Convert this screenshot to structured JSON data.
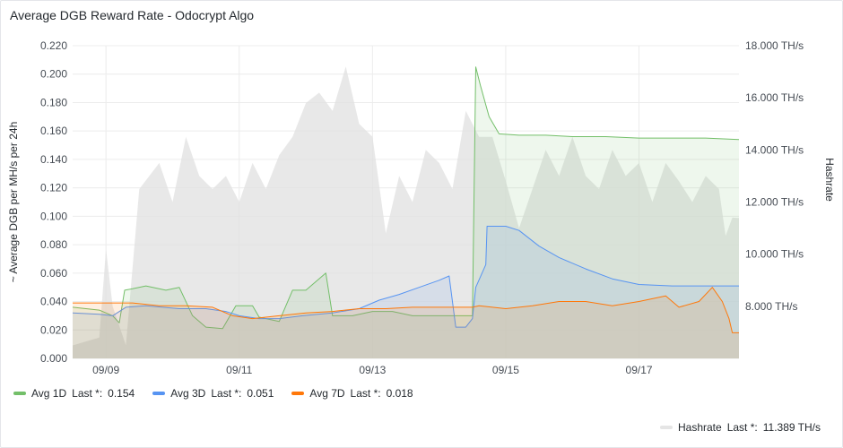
{
  "panel": {
    "title": "Average DGB Reward Rate - Odocrypt Algo"
  },
  "chart_data": {
    "type": "line",
    "title": "Average DGB Reward Rate - Odocrypt Algo",
    "ylabel_left": "~ Average DGB per MH/s per 24h",
    "ylabel_right": "Hashrate",
    "y_left_ticks": [
      "0.220",
      "0.200",
      "0.180",
      "0.160",
      "0.140",
      "0.120",
      "0.100",
      "0.080",
      "0.060",
      "0.040",
      "0.020",
      "0.000"
    ],
    "y_right_ticks": [
      "18.000 TH/s",
      "16.000 TH/s",
      "14.000 TH/s",
      "12.000 TH/s",
      "10.000 TH/s",
      "8.000 TH/s"
    ],
    "x_ticks": [
      "09/09",
      "09/11",
      "09/13",
      "09/15",
      "09/17"
    ],
    "ylim_left": [
      0,
      0.22
    ],
    "ylim_right_ths": [
      6.0,
      18.0
    ],
    "x_range_days": [
      8.5,
      18.5
    ],
    "grid": true,
    "legend_position": "bottom",
    "series": [
      {
        "name": "Avg 1D",
        "color": "#73bf69",
        "last": "0.154",
        "axis": "left",
        "fill": true,
        "points": [
          [
            8.5,
            0.036
          ],
          [
            8.9,
            0.034
          ],
          [
            9.1,
            0.03
          ],
          [
            9.2,
            0.025
          ],
          [
            9.28,
            0.048
          ],
          [
            9.4,
            0.049
          ],
          [
            9.6,
            0.051
          ],
          [
            9.9,
            0.048
          ],
          [
            10.1,
            0.05
          ],
          [
            10.3,
            0.03
          ],
          [
            10.5,
            0.022
          ],
          [
            10.75,
            0.021
          ],
          [
            10.95,
            0.037
          ],
          [
            11.2,
            0.037
          ],
          [
            11.3,
            0.029
          ],
          [
            11.6,
            0.026
          ],
          [
            11.8,
            0.048
          ],
          [
            12.0,
            0.048
          ],
          [
            12.3,
            0.06
          ],
          [
            12.4,
            0.03
          ],
          [
            12.7,
            0.03
          ],
          [
            13.0,
            0.033
          ],
          [
            13.3,
            0.033
          ],
          [
            13.6,
            0.03
          ],
          [
            14.0,
            0.03
          ],
          [
            14.5,
            0.03
          ],
          [
            14.55,
            0.205
          ],
          [
            14.62,
            0.192
          ],
          [
            14.75,
            0.17
          ],
          [
            14.9,
            0.158
          ],
          [
            15.2,
            0.157
          ],
          [
            15.6,
            0.157
          ],
          [
            16.0,
            0.156
          ],
          [
            16.5,
            0.156
          ],
          [
            17.0,
            0.155
          ],
          [
            17.5,
            0.155
          ],
          [
            18.0,
            0.155
          ],
          [
            18.5,
            0.154
          ]
        ]
      },
      {
        "name": "Avg 3D",
        "color": "#5794f2",
        "last": "0.051",
        "axis": "left",
        "fill": true,
        "points": [
          [
            8.5,
            0.032
          ],
          [
            8.9,
            0.031
          ],
          [
            9.1,
            0.03
          ],
          [
            9.3,
            0.036
          ],
          [
            9.6,
            0.037
          ],
          [
            10.1,
            0.035
          ],
          [
            10.5,
            0.035
          ],
          [
            10.8,
            0.033
          ],
          [
            11.0,
            0.03
          ],
          [
            11.3,
            0.028
          ],
          [
            11.6,
            0.028
          ],
          [
            11.95,
            0.03
          ],
          [
            12.4,
            0.032
          ],
          [
            12.8,
            0.035
          ],
          [
            13.1,
            0.041
          ],
          [
            13.4,
            0.045
          ],
          [
            13.7,
            0.05
          ],
          [
            14.0,
            0.055
          ],
          [
            14.15,
            0.058
          ],
          [
            14.25,
            0.022
          ],
          [
            14.4,
            0.022
          ],
          [
            14.5,
            0.028
          ],
          [
            14.55,
            0.05
          ],
          [
            14.7,
            0.066
          ],
          [
            14.72,
            0.093
          ],
          [
            15.0,
            0.093
          ],
          [
            15.2,
            0.09
          ],
          [
            15.5,
            0.079
          ],
          [
            15.8,
            0.071
          ],
          [
            16.2,
            0.063
          ],
          [
            16.6,
            0.056
          ],
          [
            17.0,
            0.052
          ],
          [
            17.5,
            0.051
          ],
          [
            18.0,
            0.051
          ],
          [
            18.5,
            0.051
          ]
        ]
      },
      {
        "name": "Avg 7D",
        "color": "#ff780a",
        "last": "0.018",
        "axis": "left",
        "fill": true,
        "points": [
          [
            8.5,
            0.039
          ],
          [
            9.0,
            0.039
          ],
          [
            9.4,
            0.039
          ],
          [
            9.8,
            0.037
          ],
          [
            10.2,
            0.037
          ],
          [
            10.6,
            0.036
          ],
          [
            10.9,
            0.03
          ],
          [
            11.2,
            0.028
          ],
          [
            11.6,
            0.03
          ],
          [
            12.0,
            0.032
          ],
          [
            12.4,
            0.033
          ],
          [
            12.8,
            0.035
          ],
          [
            13.2,
            0.035
          ],
          [
            13.6,
            0.036
          ],
          [
            14.0,
            0.036
          ],
          [
            14.5,
            0.036
          ],
          [
            14.6,
            0.037
          ],
          [
            15.0,
            0.035
          ],
          [
            15.4,
            0.037
          ],
          [
            15.8,
            0.04
          ],
          [
            16.2,
            0.04
          ],
          [
            16.6,
            0.037
          ],
          [
            17.0,
            0.04
          ],
          [
            17.4,
            0.044
          ],
          [
            17.6,
            0.036
          ],
          [
            17.9,
            0.04
          ],
          [
            18.1,
            0.05
          ],
          [
            18.25,
            0.04
          ],
          [
            18.35,
            0.028
          ],
          [
            18.4,
            0.018
          ],
          [
            18.5,
            0.018
          ]
        ]
      },
      {
        "name": "Hashrate",
        "color": "#e0e0e0",
        "last": "11.389 TH/s",
        "axis": "right",
        "fill": true,
        "unit": "TH/s",
        "points": [
          [
            8.5,
            6.5
          ],
          [
            8.9,
            6.8
          ],
          [
            9.0,
            10.2
          ],
          [
            9.1,
            8.0
          ],
          [
            9.3,
            6.5
          ],
          [
            9.5,
            12.5
          ],
          [
            9.8,
            13.5
          ],
          [
            10.0,
            12.0
          ],
          [
            10.2,
            14.5
          ],
          [
            10.4,
            13.0
          ],
          [
            10.6,
            12.5
          ],
          [
            10.8,
            13.0
          ],
          [
            11.0,
            12.0
          ],
          [
            11.2,
            13.5
          ],
          [
            11.4,
            12.5
          ],
          [
            11.6,
            13.8
          ],
          [
            11.8,
            14.5
          ],
          [
            12.0,
            15.8
          ],
          [
            12.2,
            16.2
          ],
          [
            12.4,
            15.5
          ],
          [
            12.6,
            17.2
          ],
          [
            12.8,
            15.0
          ],
          [
            13.0,
            14.5
          ],
          [
            13.2,
            10.8
          ],
          [
            13.4,
            13.0
          ],
          [
            13.6,
            12.0
          ],
          [
            13.8,
            14.0
          ],
          [
            14.0,
            13.5
          ],
          [
            14.2,
            12.5
          ],
          [
            14.4,
            15.5
          ],
          [
            14.6,
            14.5
          ],
          [
            14.8,
            14.5
          ],
          [
            15.0,
            12.8
          ],
          [
            15.2,
            11.0
          ],
          [
            15.4,
            12.5
          ],
          [
            15.6,
            14.0
          ],
          [
            15.8,
            13.0
          ],
          [
            16.0,
            14.5
          ],
          [
            16.2,
            13.0
          ],
          [
            16.4,
            12.5
          ],
          [
            16.6,
            14.0
          ],
          [
            16.8,
            13.0
          ],
          [
            17.0,
            13.5
          ],
          [
            17.2,
            12.0
          ],
          [
            17.4,
            13.5
          ],
          [
            17.6,
            12.8
          ],
          [
            17.8,
            12.0
          ],
          [
            18.0,
            13.0
          ],
          [
            18.2,
            12.5
          ],
          [
            18.3,
            10.7
          ],
          [
            18.4,
            11.4
          ],
          [
            18.5,
            11.389
          ]
        ]
      }
    ]
  },
  "legend": {
    "items": [
      {
        "name": "Avg 1D",
        "last_label": "Last *:",
        "last": "0.154",
        "color": "#73bf69"
      },
      {
        "name": "Avg 3D",
        "last_label": "Last *:",
        "last": "0.051",
        "color": "#5794f2"
      },
      {
        "name": "Avg 7D",
        "last_label": "Last *:",
        "last": "0.018",
        "color": "#ff780a"
      }
    ],
    "right_item": {
      "name": "Hashrate",
      "last_label": "Last *:",
      "last": "11.389 TH/s",
      "color": "#e5e5e5"
    }
  }
}
